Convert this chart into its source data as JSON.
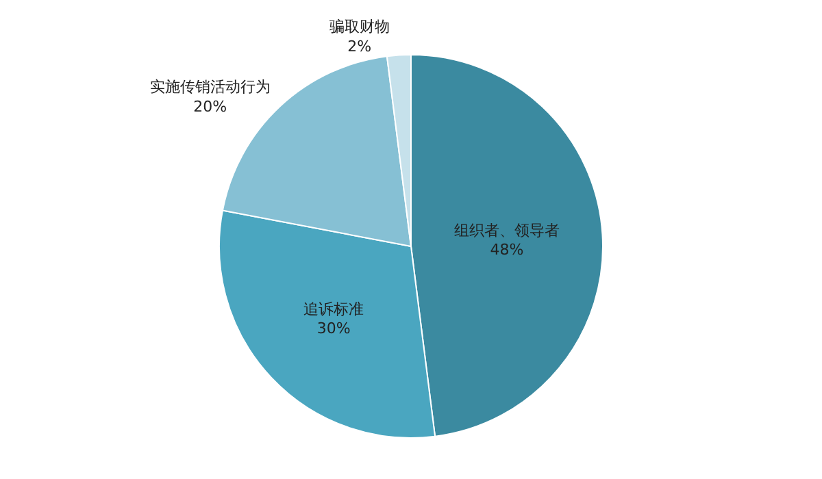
{
  "chart_data": {
    "type": "pie",
    "categories": [
      "组织者、领导者",
      "追诉标准",
      "实施传销活动行为",
      "骗取财物"
    ],
    "values": [
      48,
      30,
      20,
      2
    ],
    "value_labels": [
      "48%",
      "30%",
      "20%",
      "2%"
    ],
    "colors": [
      "#3b8aa0",
      "#4aa6c0",
      "#86c0d4",
      "#c6e1eb"
    ],
    "legend": false
  }
}
